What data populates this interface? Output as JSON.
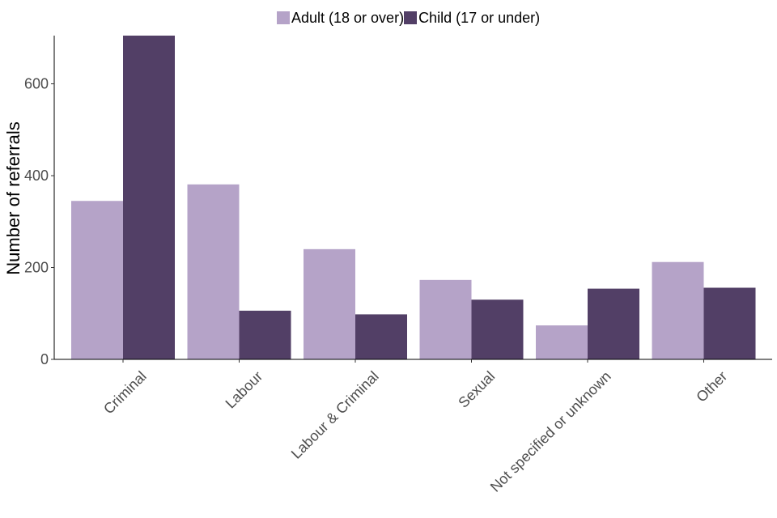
{
  "chart_data": {
    "type": "bar",
    "title": "",
    "xlabel": "",
    "ylabel": "Number of referrals",
    "ylim": [
      0,
      705
    ],
    "yticks": [
      0,
      200,
      400,
      600
    ],
    "grid": false,
    "legend_position": "top",
    "categories": [
      "Criminal",
      "Labour",
      "Labour & Criminal",
      "Sexual",
      "Not specified or unknown",
      "Other"
    ],
    "series": [
      {
        "name": "Adult (18 or over)",
        "color": "#b5a3c8",
        "values": [
          345,
          381,
          240,
          173,
          74,
          212
        ]
      },
      {
        "name": "Child (17 or under)",
        "color": "#523f66",
        "values": [
          705,
          106,
          98,
          130,
          154,
          156
        ]
      }
    ]
  }
}
